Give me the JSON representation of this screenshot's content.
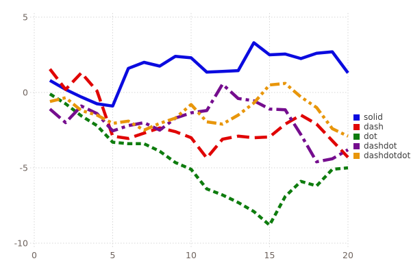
{
  "chart_data": {
    "type": "line",
    "title": "",
    "xlabel": "",
    "ylabel": "",
    "x_ticks": [
      0,
      5,
      10,
      15,
      20
    ],
    "y_ticks": [
      5,
      0,
      -5,
      -10
    ],
    "xlim": [
      0,
      20
    ],
    "ylim": [
      -10,
      5
    ],
    "grid": "dotted",
    "legend_position": "right",
    "x": [
      1,
      2,
      3,
      4,
      5,
      6,
      7,
      8,
      9,
      10,
      11,
      12,
      13,
      14,
      15,
      16,
      17,
      18,
      19,
      20
    ],
    "series": [
      {
        "name": "solid",
        "color": "#0b0bdf",
        "dash": "solid",
        "values": [
          0.8,
          0.2,
          -0.3,
          -0.75,
          -0.9,
          1.6,
          2.0,
          1.75,
          2.4,
          2.3,
          1.35,
          1.4,
          1.45,
          3.3,
          2.5,
          2.55,
          2.25,
          2.6,
          2.7,
          1.3
        ]
      },
      {
        "name": "dash",
        "color": "#e00505",
        "dash": "dash",
        "values": [
          1.55,
          0.2,
          1.3,
          0.1,
          -2.9,
          -3.05,
          -2.7,
          -2.35,
          -2.6,
          -3.0,
          -4.35,
          -3.1,
          -2.9,
          -3.0,
          -2.95,
          -2.1,
          -1.5,
          -2.1,
          -3.2,
          -4.3
        ]
      },
      {
        "name": "dot",
        "color": "#0e7c0e",
        "dash": "dot",
        "values": [
          -0.1,
          -0.75,
          -1.55,
          -2.2,
          -3.3,
          -3.4,
          -3.4,
          -3.9,
          -4.65,
          -5.1,
          -6.4,
          -6.8,
          -7.3,
          -7.9,
          -8.8,
          -6.9,
          -5.9,
          -6.2,
          -5.1,
          -5.0
        ]
      },
      {
        "name": "dashdot",
        "color": "#750d8e",
        "dash": "dashdot",
        "values": [
          -1.1,
          -2.0,
          -0.9,
          -1.4,
          -2.55,
          -2.2,
          -2.0,
          -2.5,
          -1.7,
          -1.35,
          -1.2,
          0.55,
          -0.4,
          -0.55,
          -1.1,
          -1.15,
          -2.8,
          -4.6,
          -4.4,
          -3.8
        ]
      },
      {
        "name": "dashdotdot",
        "color": "#e8960b",
        "dash": "dashdotdot",
        "values": [
          -0.6,
          -0.35,
          -1.2,
          -1.5,
          -2.05,
          -1.9,
          -2.5,
          -2.05,
          -1.7,
          -0.8,
          -1.95,
          -2.1,
          -1.5,
          -0.7,
          0.5,
          0.6,
          -0.3,
          -1.0,
          -2.4,
          -2.9
        ]
      }
    ],
    "style": {
      "background": "#ffffff",
      "grid_color": "#d6d6d6",
      "tick_label_color": "#6e635d",
      "legend_text_color": "#3c3c3c",
      "line_width": 4.5
    }
  }
}
